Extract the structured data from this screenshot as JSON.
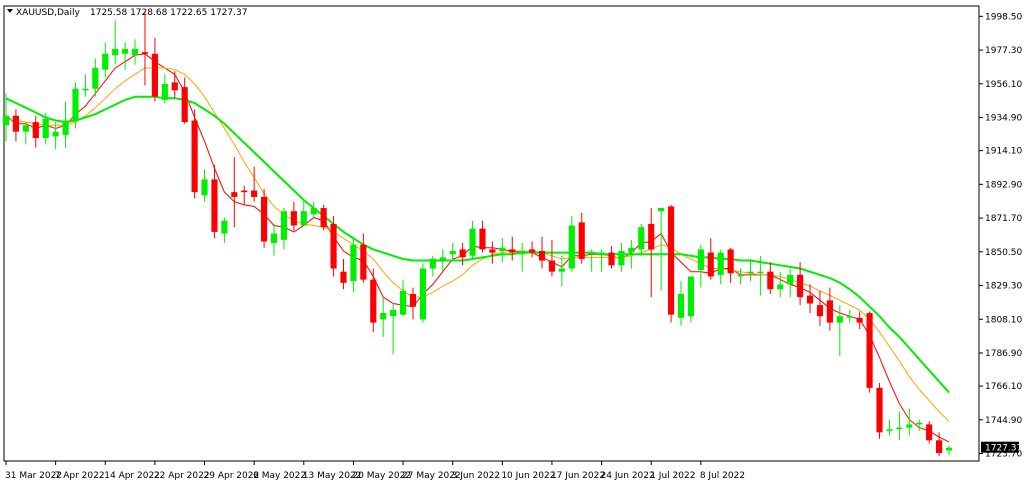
{
  "header": {
    "symbol": "XAUUSD,Daily",
    "ohlc": "1725.58 1728.68 1722.65 1727.37"
  },
  "price_axis": {
    "ticks": [
      "1998.50",
      "1977.30",
      "1956.10",
      "1934.90",
      "1914.10",
      "1892.90",
      "1871.70",
      "1850.50",
      "1829.30",
      "1808.10",
      "1786.90",
      "1766.10",
      "1744.90",
      "1723.70"
    ],
    "current_price_label": "1727.37"
  },
  "time_axis": {
    "ticks": [
      "31 Mar 2022",
      "7 Apr 2022",
      "14 Apr 2022",
      "22 Apr 2022",
      "29 Apr 2022",
      "6 May 2022",
      "13 May 2022",
      "20 May 2022",
      "27 May 2022",
      "3 Jun 2022",
      "10 Jun 2022",
      "17 Jun 2022",
      "24 Jun 2022",
      "1 Jul 2022",
      "8 Jul 2022"
    ]
  },
  "chart_data": {
    "type": "candlestick",
    "symbol": "XAUUSD",
    "timeframe": "Daily",
    "ylim": [
      1719,
      2005
    ],
    "colors": {
      "bull": "#00ee00",
      "bear": "#ff0000",
      "ma_fast": "#ff0000",
      "ma_mid": "#ffa500",
      "ma_slow": "#00ee00"
    },
    "candles": [
      {
        "date": "31 Mar 2022",
        "o": 1930,
        "h": 1950,
        "l": 1920,
        "c": 1936
      },
      {
        "date": "1 Apr 2022",
        "o": 1936,
        "h": 1940,
        "l": 1920,
        "c": 1926
      },
      {
        "date": "4 Apr 2022",
        "o": 1926,
        "h": 1932,
        "l": 1918,
        "c": 1930
      },
      {
        "date": "5 Apr 2022",
        "o": 1932,
        "h": 1936,
        "l": 1916,
        "c": 1922
      },
      {
        "date": "6 Apr 2022",
        "o": 1922,
        "h": 1938,
        "l": 1918,
        "c": 1934
      },
      {
        "date": "7 Apr 2022",
        "o": 1923,
        "h": 1932,
        "l": 1915,
        "c": 1926
      },
      {
        "date": "8 Apr 2022",
        "o": 1924,
        "h": 1945,
        "l": 1916,
        "c": 1933
      },
      {
        "date": "11 Apr 2022",
        "o": 1933,
        "h": 1957,
        "l": 1928,
        "c": 1953
      },
      {
        "date": "12 Apr 2022",
        "o": 1952,
        "h": 1962,
        "l": 1948,
        "c": 1953
      },
      {
        "date": "13 Apr 2022",
        "o": 1953,
        "h": 1972,
        "l": 1948,
        "c": 1966
      },
      {
        "date": "14 Apr 2022",
        "o": 1965,
        "h": 1982,
        "l": 1960,
        "c": 1975
      },
      {
        "date": "18 Apr 2022",
        "o": 1974,
        "h": 1996,
        "l": 1968,
        "c": 1978
      },
      {
        "date": "19 Apr 2022",
        "o": 1975,
        "h": 1982,
        "l": 1965,
        "c": 1978
      },
      {
        "date": "20 Apr 2022",
        "o": 1974,
        "h": 1984,
        "l": 1968,
        "c": 1978
      },
      {
        "date": "21 Apr 2022",
        "o": 1976,
        "h": 2002,
        "l": 1955,
        "c": 1975
      },
      {
        "date": "22 Apr 2022",
        "o": 1975,
        "h": 1985,
        "l": 1945,
        "c": 1948
      },
      {
        "date": "25 Apr 2022",
        "o": 1946,
        "h": 1962,
        "l": 1944,
        "c": 1956
      },
      {
        "date": "26 Apr 2022",
        "o": 1957,
        "h": 1964,
        "l": 1947,
        "c": 1952
      },
      {
        "date": "27 Apr 2022",
        "o": 1954,
        "h": 1960,
        "l": 1931,
        "c": 1932
      },
      {
        "date": "28 Apr 2022",
        "o": 1933,
        "h": 1940,
        "l": 1884,
        "c": 1888
      },
      {
        "date": "29 Apr 2022",
        "o": 1886,
        "h": 1902,
        "l": 1882,
        "c": 1896
      },
      {
        "date": "2 May 2022",
        "o": 1896,
        "h": 1905,
        "l": 1859,
        "c": 1863
      },
      {
        "date": "3 May 2022",
        "o": 1862,
        "h": 1872,
        "l": 1856,
        "c": 1870
      },
      {
        "date": "4 May 2022",
        "o": 1888,
        "h": 1910,
        "l": 1866,
        "c": 1885
      },
      {
        "date": "5 May 2022",
        "o": 1889,
        "h": 1892,
        "l": 1880,
        "c": 1888
      },
      {
        "date": "6 May 2022",
        "o": 1889,
        "h": 1904,
        "l": 1882,
        "c": 1885
      },
      {
        "date": "9 May 2022",
        "o": 1885,
        "h": 1890,
        "l": 1853,
        "c": 1857
      },
      {
        "date": "10 May 2022",
        "o": 1856,
        "h": 1868,
        "l": 1848,
        "c": 1862
      },
      {
        "date": "11 May 2022",
        "o": 1858,
        "h": 1878,
        "l": 1852,
        "c": 1876
      },
      {
        "date": "12 May 2022",
        "o": 1876,
        "h": 1882,
        "l": 1864,
        "c": 1867
      },
      {
        "date": "13 May 2022",
        "o": 1867,
        "h": 1883,
        "l": 1867,
        "c": 1876
      },
      {
        "date": "16 May 2022",
        "o": 1874,
        "h": 1882,
        "l": 1872,
        "c": 1878
      },
      {
        "date": "17 May 2022",
        "o": 1878,
        "h": 1880,
        "l": 1864,
        "c": 1866
      },
      {
        "date": "18 May 2022",
        "o": 1868,
        "h": 1873,
        "l": 1835,
        "c": 1840
      },
      {
        "date": "19 May 2022",
        "o": 1838,
        "h": 1846,
        "l": 1827,
        "c": 1831
      },
      {
        "date": "20 May 2022",
        "o": 1832,
        "h": 1860,
        "l": 1825,
        "c": 1855
      },
      {
        "date": "23 May 2022",
        "o": 1855,
        "h": 1862,
        "l": 1831,
        "c": 1833
      },
      {
        "date": "24 May 2022",
        "o": 1833,
        "h": 1840,
        "l": 1800,
        "c": 1806
      },
      {
        "date": "25 May 2022",
        "o": 1808,
        "h": 1822,
        "l": 1797,
        "c": 1812
      },
      {
        "date": "26 May 2022",
        "o": 1810,
        "h": 1818,
        "l": 1786,
        "c": 1814
      },
      {
        "date": "27 May 2022",
        "o": 1811,
        "h": 1833,
        "l": 1810,
        "c": 1826
      },
      {
        "date": "30 May 2022",
        "o": 1824,
        "h": 1828,
        "l": 1808,
        "c": 1816
      },
      {
        "date": "31 May 2022",
        "o": 1808,
        "h": 1843,
        "l": 1806,
        "c": 1840
      },
      {
        "date": "1 Jun 2022",
        "o": 1840,
        "h": 1848,
        "l": 1835,
        "c": 1846
      },
      {
        "date": "2 Jun 2022",
        "o": 1845,
        "h": 1852,
        "l": 1838,
        "c": 1847
      },
      {
        "date": "3 Jun 2022",
        "o": 1849,
        "h": 1856,
        "l": 1845,
        "c": 1851
      },
      {
        "date": "6 Jun 2022",
        "o": 1852,
        "h": 1856,
        "l": 1842,
        "c": 1847
      },
      {
        "date": "7 Jun 2022",
        "o": 1848,
        "h": 1870,
        "l": 1846,
        "c": 1865
      },
      {
        "date": "8 Jun 2022",
        "o": 1865,
        "h": 1870,
        "l": 1850,
        "c": 1852
      },
      {
        "date": "9 Jun 2022",
        "o": 1852,
        "h": 1857,
        "l": 1843,
        "c": 1850
      },
      {
        "date": "10 Jun 2022",
        "o": 1851,
        "h": 1859,
        "l": 1844,
        "c": 1853
      },
      {
        "date": "13 Jun 2022",
        "o": 1852,
        "h": 1860,
        "l": 1845,
        "c": 1850
      },
      {
        "date": "14 Jun 2022",
        "o": 1849,
        "h": 1856,
        "l": 1838,
        "c": 1851
      },
      {
        "date": "15 Jun 2022",
        "o": 1852,
        "h": 1857,
        "l": 1847,
        "c": 1850
      },
      {
        "date": "16 Jun 2022",
        "o": 1851,
        "h": 1860,
        "l": 1840,
        "c": 1845
      },
      {
        "date": "17 Jun 2022",
        "o": 1845,
        "h": 1858,
        "l": 1835,
        "c": 1838
      },
      {
        "date": "20 Jun 2022",
        "o": 1838,
        "h": 1848,
        "l": 1829,
        "c": 1840
      },
      {
        "date": "21 Jun 2022",
        "o": 1840,
        "h": 1873,
        "l": 1838,
        "c": 1867
      },
      {
        "date": "22 Jun 2022",
        "o": 1869,
        "h": 1875,
        "l": 1843,
        "c": 1846
      },
      {
        "date": "23 Jun 2022",
        "o": 1850,
        "h": 1852,
        "l": 1838,
        "c": 1850
      },
      {
        "date": "24 Jun 2022",
        "o": 1850,
        "h": 1852,
        "l": 1838,
        "c": 1850
      },
      {
        "date": "27 Jun 2022",
        "o": 1850,
        "h": 1854,
        "l": 1840,
        "c": 1842
      },
      {
        "date": "28 Jun 2022",
        "o": 1842,
        "h": 1856,
        "l": 1838,
        "c": 1851
      },
      {
        "date": "29 Jun 2022",
        "o": 1850,
        "h": 1858,
        "l": 1840,
        "c": 1853
      },
      {
        "date": "30 Jun 2022",
        "o": 1852,
        "h": 1868,
        "l": 1848,
        "c": 1866
      },
      {
        "date": "1 Jul 2022",
        "o": 1868,
        "h": 1878,
        "l": 1822,
        "c": 1852
      },
      {
        "date": "4 Jul 2022",
        "o": 1876,
        "h": 1878,
        "l": 1826,
        "c": 1878
      },
      {
        "date": "5 Jul 2022",
        "o": 1879,
        "h": 1880,
        "l": 1806,
        "c": 1811
      },
      {
        "date": "6 Jul 2022",
        "o": 1809,
        "h": 1832,
        "l": 1804,
        "c": 1824
      },
      {
        "date": "7 Jul 2022",
        "o": 1810,
        "h": 1834,
        "l": 1806,
        "c": 1835
      },
      {
        "date": "8 Jul 2022",
        "o": 1839,
        "h": 1855,
        "l": 1828,
        "c": 1852
      },
      {
        "date": "11 Jul 2022",
        "o": 1850,
        "h": 1859,
        "l": 1833,
        "c": 1835
      },
      {
        "date": "12 Jul 2022",
        "o": 1836,
        "h": 1852,
        "l": 1830,
        "c": 1850
      },
      {
        "date": "13 Jul 2022",
        "o": 1852,
        "h": 1853,
        "l": 1831,
        "c": 1837
      },
      {
        "date": "14 Jul 2022",
        "o": 1836,
        "h": 1840,
        "l": 1830,
        "c": 1836
      },
      {
        "date": "15 Jul 2022",
        "o": 1837,
        "h": 1846,
        "l": 1832,
        "c": 1838
      },
      {
        "date": "18 Jul 2022",
        "o": 1837,
        "h": 1848,
        "l": 1823,
        "c": 1838
      },
      {
        "date": "19 Jul 2022",
        "o": 1838,
        "h": 1844,
        "l": 1824,
        "c": 1827
      },
      {
        "date": "20 Jul 2022",
        "o": 1827,
        "h": 1838,
        "l": 1822,
        "c": 1830
      },
      {
        "date": "21 Jul 2022",
        "o": 1830,
        "h": 1840,
        "l": 1822,
        "c": 1836
      },
      {
        "date": "22 Jul 2022",
        "o": 1836,
        "h": 1844,
        "l": 1817,
        "c": 1822
      },
      {
        "date": "25 Jul 2022",
        "o": 1823,
        "h": 1830,
        "l": 1812,
        "c": 1818
      },
      {
        "date": "26 Jul 2022",
        "o": 1817,
        "h": 1826,
        "l": 1804,
        "c": 1810
      },
      {
        "date": "27 Jul 2022",
        "o": 1820,
        "h": 1828,
        "l": 1801,
        "c": 1806
      },
      {
        "date": "28 Jul 2022",
        "o": 1806,
        "h": 1817,
        "l": 1785,
        "c": 1810
      },
      {
        "date": "29 Jul 2022",
        "o": 1810,
        "h": 1814,
        "l": 1806,
        "c": 1810
      },
      {
        "date": "1 Aug 2022",
        "o": 1809,
        "h": 1813,
        "l": 1802,
        "c": 1806
      },
      {
        "date": "2 Aug 2022",
        "o": 1812,
        "h": 1813,
        "l": 1762,
        "c": 1765
      },
      {
        "date": "3 Aug 2022",
        "o": 1765,
        "h": 1768,
        "l": 1733,
        "c": 1737
      },
      {
        "date": "4 Aug 2022",
        "o": 1738,
        "h": 1745,
        "l": 1735,
        "c": 1739
      },
      {
        "date": "5 Aug 2022",
        "o": 1740,
        "h": 1750,
        "l": 1732,
        "c": 1740
      },
      {
        "date": "8 Aug 2022",
        "o": 1740,
        "h": 1752,
        "l": 1735,
        "c": 1742
      },
      {
        "date": "9 Aug 2022",
        "o": 1742,
        "h": 1745,
        "l": 1738,
        "c": 1743
      },
      {
        "date": "10 Aug 2022",
        "o": 1742,
        "h": 1744,
        "l": 1730,
        "c": 1732
      },
      {
        "date": "11 Aug 2022",
        "o": 1732,
        "h": 1737,
        "l": 1722,
        "c": 1724
      },
      {
        "date": "12 Aug 2022",
        "o": 1725.58,
        "h": 1728.68,
        "l": 1722.65,
        "c": 1727.37
      }
    ],
    "moving_averages": [
      {
        "color": "#ff0000",
        "values": [
          1936,
          1931,
          1931,
          1928,
          1930,
          1928,
          1930,
          1937,
          1942,
          1950,
          1958,
          1966,
          1970,
          1974,
          1975,
          1970,
          1966,
          1962,
          1951,
          1935,
          1920,
          1903,
          1888,
          1882,
          1880,
          1879,
          1874,
          1867,
          1866,
          1863,
          1867,
          1872,
          1870,
          1860,
          1851,
          1847,
          1845,
          1835,
          1822,
          1818,
          1817,
          1816,
          1824,
          1830,
          1838,
          1846,
          1848,
          1854,
          1853,
          1853,
          1852,
          1851,
          1850,
          1850,
          1847,
          1844,
          1841,
          1848,
          1848,
          1849,
          1849,
          1848,
          1846,
          1850,
          1856,
          1857,
          1862,
          1850,
          1844,
          1838,
          1838,
          1837,
          1840,
          1840,
          1836,
          1836,
          1836,
          1836,
          1833,
          1830,
          1828,
          1825,
          1820,
          1815,
          1812,
          1810,
          1808,
          1798,
          1784,
          1769,
          1755,
          1745,
          1740,
          1738,
          1734,
          1731
        ]
      },
      {
        "color": "#ffa500",
        "values": [
          1934,
          1933,
          1932,
          1931,
          1930,
          1930,
          1930,
          1932,
          1936,
          1941,
          1947,
          1953,
          1958,
          1962,
          1966,
          1966,
          1966,
          1965,
          1962,
          1956,
          1948,
          1938,
          1928,
          1918,
          1907,
          1897,
          1887,
          1879,
          1874,
          1870,
          1868,
          1867,
          1866,
          1863,
          1859,
          1855,
          1851,
          1846,
          1838,
          1831,
          1826,
          1822,
          1822,
          1825,
          1829,
          1832,
          1836,
          1842,
          1846,
          1849,
          1850,
          1851,
          1851,
          1851,
          1850,
          1848,
          1846,
          1847,
          1847,
          1847,
          1847,
          1847,
          1847,
          1848,
          1850,
          1852,
          1855,
          1853,
          1849,
          1846,
          1843,
          1840,
          1840,
          1839,
          1838,
          1837,
          1836,
          1836,
          1835,
          1833,
          1831,
          1829,
          1826,
          1823,
          1820,
          1817,
          1814,
          1808,
          1800,
          1791,
          1782,
          1772,
          1764,
          1757,
          1750,
          1744
        ]
      },
      {
        "color": "#00ee00",
        "values": [
          1947,
          1944,
          1941,
          1938,
          1935,
          1933,
          1932,
          1933,
          1935,
          1937,
          1940,
          1943,
          1946,
          1948,
          1948,
          1948,
          1947,
          1947,
          1946,
          1944,
          1940,
          1936,
          1931,
          1925,
          1919,
          1913,
          1907,
          1901,
          1895,
          1889,
          1883,
          1878,
          1873,
          1868,
          1863,
          1859,
          1855,
          1852,
          1850,
          1848,
          1846,
          1845,
          1845,
          1845,
          1845,
          1845,
          1845,
          1846,
          1847,
          1848,
          1849,
          1849,
          1850,
          1850,
          1850,
          1850,
          1850,
          1850,
          1850,
          1850,
          1849,
          1849,
          1849,
          1849,
          1849,
          1849,
          1849,
          1849,
          1849,
          1848,
          1847,
          1847,
          1846,
          1846,
          1845,
          1845,
          1844,
          1843,
          1842,
          1841,
          1840,
          1838,
          1836,
          1834,
          1831,
          1827,
          1822,
          1816,
          1810,
          1803,
          1797,
          1790,
          1783,
          1776,
          1769,
          1762
        ]
      }
    ]
  }
}
